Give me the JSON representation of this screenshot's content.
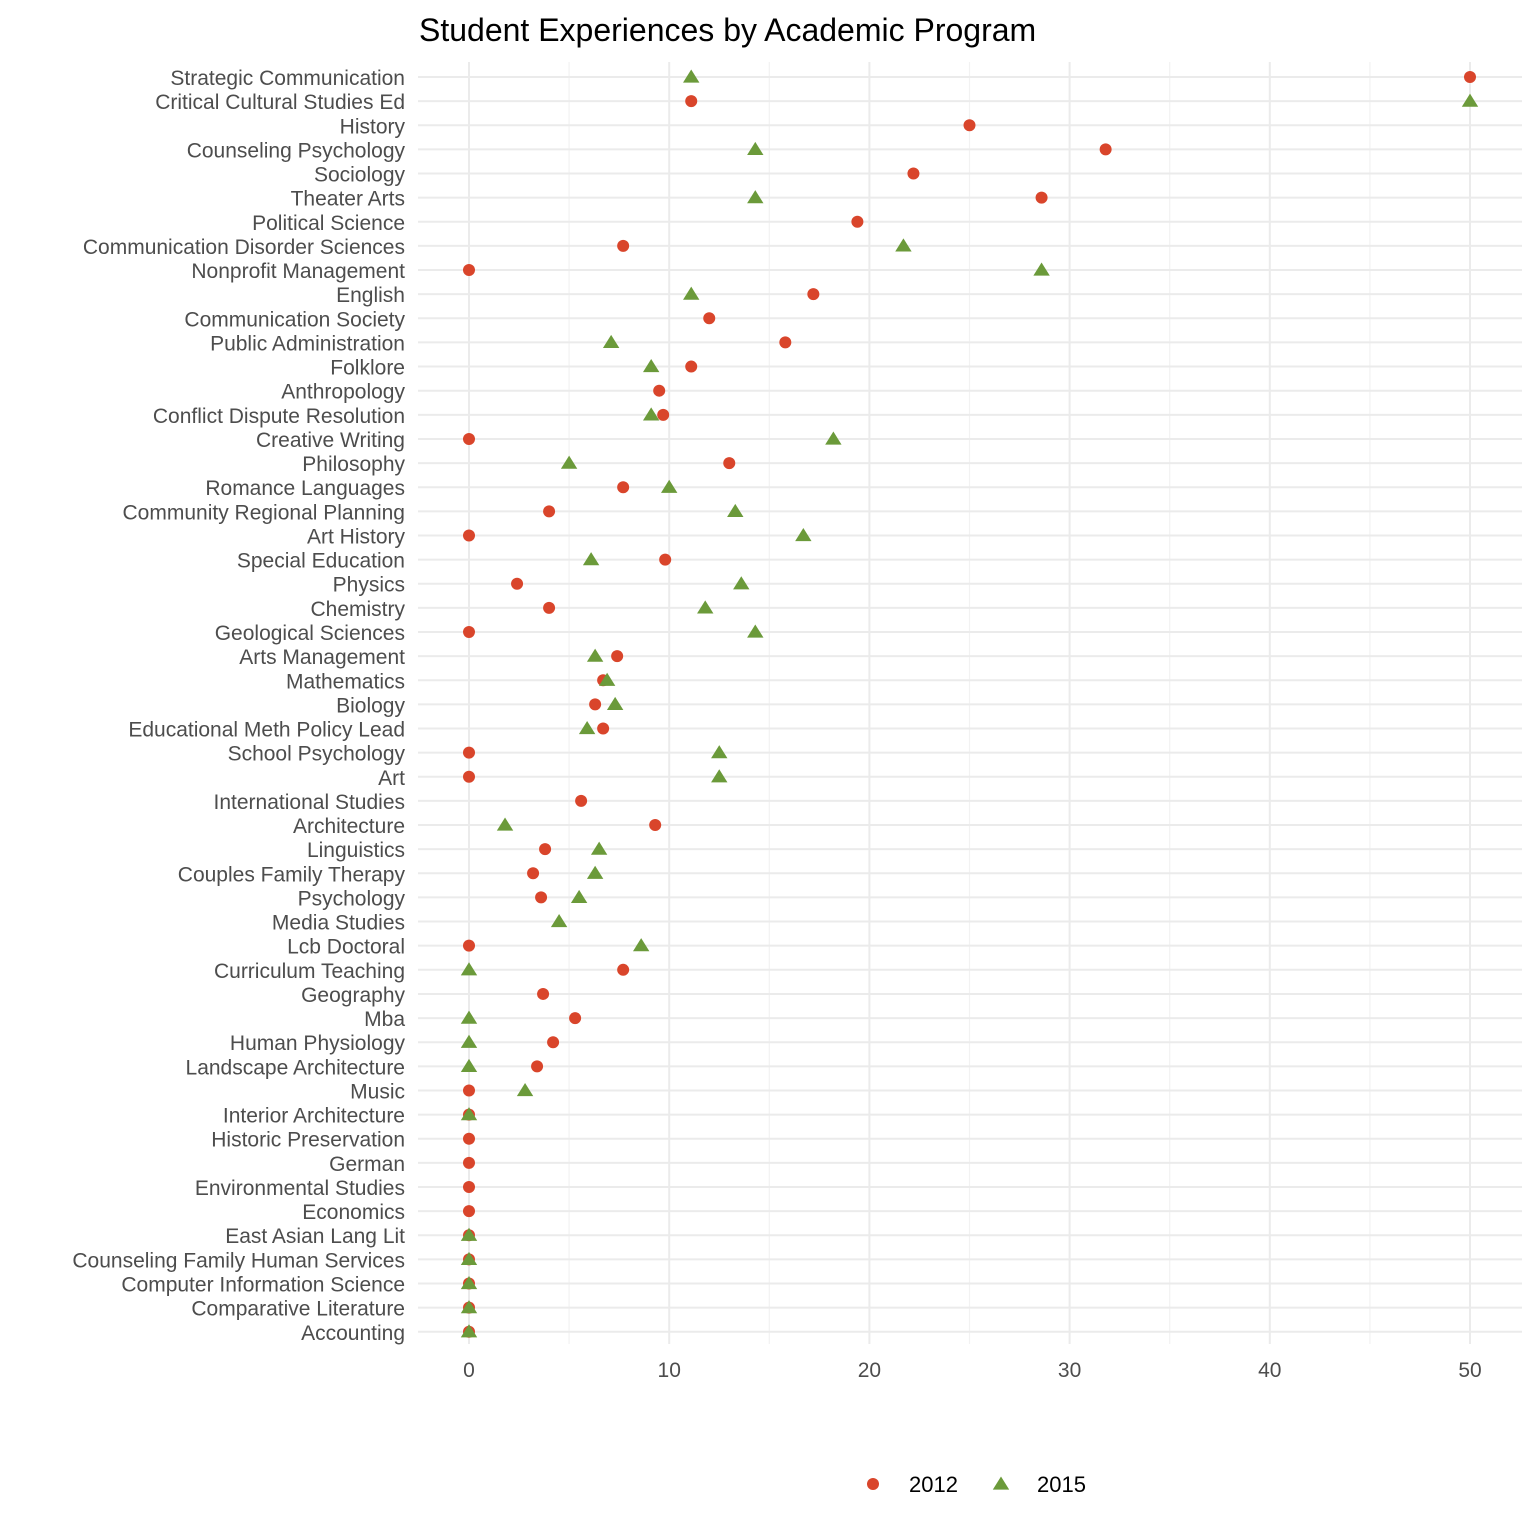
{
  "chart_data": {
    "type": "scatter",
    "title": "Student Experiences by Academic Program",
    "xlabel": "",
    "ylabel": "",
    "xlim": [
      -2.5,
      52.5
    ],
    "x_ticks": [
      0,
      10,
      20,
      30,
      40,
      50
    ],
    "x_tick_labels": [
      "0",
      "10",
      "20",
      "30",
      "40",
      "50"
    ],
    "grid": true,
    "legend_position": "bottom",
    "categories": [
      "Strategic Communication",
      "Critical Cultural Studies Ed",
      "History",
      "Counseling Psychology",
      "Sociology",
      "Theater Arts",
      "Political Science",
      "Communication Disorder Sciences",
      "Nonprofit Management",
      "English",
      "Communication Society",
      "Public Administration",
      "Folklore",
      "Anthropology",
      "Conflict Dispute Resolution",
      "Creative Writing",
      "Philosophy",
      "Romance Languages",
      "Community Regional Planning",
      "Art History",
      "Special Education",
      "Physics",
      "Chemistry",
      "Geological Sciences",
      "Arts Management",
      "Mathematics",
      "Biology",
      "Educational Meth Policy Lead",
      "School Psychology",
      "Art",
      "International Studies",
      "Architecture",
      "Linguistics",
      "Couples Family Therapy",
      "Psychology",
      "Media Studies",
      "Lcb Doctoral",
      "Curriculum Teaching",
      "Geography",
      "Mba",
      "Human Physiology",
      "Landscape Architecture",
      "Music",
      "Interior Architecture",
      "Historic Preservation",
      "German",
      "Environmental Studies",
      "Economics",
      "East Asian Lang Lit",
      "Counseling Family Human Services",
      "Computer Information Science",
      "Comparative Literature",
      "Accounting"
    ],
    "series": [
      {
        "name": "2012",
        "color": "#d9452b",
        "marker": "circle",
        "values": [
          50,
          11.1,
          25,
          31.8,
          22.2,
          28.6,
          19.4,
          7.7,
          0,
          17.2,
          12,
          15.8,
          11.1,
          9.5,
          9.7,
          0,
          13,
          7.7,
          4,
          0,
          9.8,
          2.4,
          4,
          0,
          7.4,
          6.7,
          6.3,
          6.7,
          0,
          0,
          5.6,
          9.3,
          3.8,
          3.2,
          3.6,
          null,
          0,
          7.7,
          3.7,
          5.3,
          4.2,
          3.4,
          0,
          0,
          0,
          0,
          0,
          0,
          0,
          0,
          0,
          0,
          0
        ]
      },
      {
        "name": "2015",
        "color": "#6b9a3a",
        "marker": "triangle",
        "values": [
          11.1,
          50,
          null,
          14.3,
          null,
          14.3,
          null,
          21.7,
          28.6,
          11.1,
          null,
          7.1,
          9.1,
          null,
          9.1,
          18.2,
          5,
          10,
          13.3,
          16.7,
          6.1,
          13.6,
          11.8,
          14.3,
          6.3,
          6.9,
          7.3,
          5.9,
          12.5,
          12.5,
          null,
          1.8,
          6.5,
          6.3,
          5.5,
          4.5,
          8.6,
          0,
          null,
          0,
          0,
          0,
          2.8,
          0,
          null,
          null,
          null,
          null,
          0,
          0,
          0,
          0,
          0
        ]
      }
    ]
  }
}
